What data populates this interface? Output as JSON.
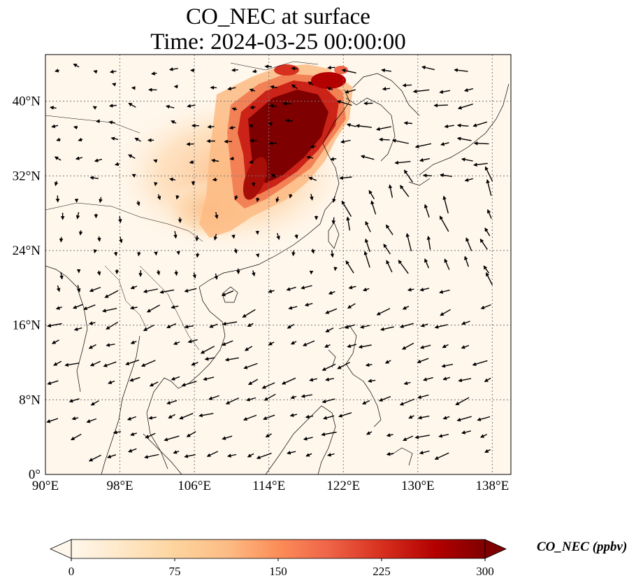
{
  "title": "CO_NEC at surface",
  "subtitle": "Time: 2024-03-25 00:00:00",
  "map": {
    "lon_range": [
      90,
      140
    ],
    "lat_range": [
      0,
      45
    ],
    "lon_ticks": [
      "90°E",
      "98°E",
      "106°E",
      "114°E",
      "122°E",
      "130°E",
      "138°E"
    ],
    "lat_ticks": [
      "0°",
      "8°N",
      "16°N",
      "24°N",
      "32°N",
      "40°N"
    ],
    "gridlines": "dotted",
    "overlay": "wind vectors"
  },
  "colorbar": {
    "label": "CO_NEC (ppbv)",
    "ticks": [
      "0",
      "75",
      "150",
      "225",
      "300"
    ],
    "range": [
      0,
      300
    ],
    "extend": "both",
    "colormap": [
      "#fff7ec",
      "#fee8c8",
      "#fdd49e",
      "#fdbb84",
      "#fc8d59",
      "#ef6548",
      "#d7301f",
      "#b30000",
      "#7f0000"
    ]
  }
}
